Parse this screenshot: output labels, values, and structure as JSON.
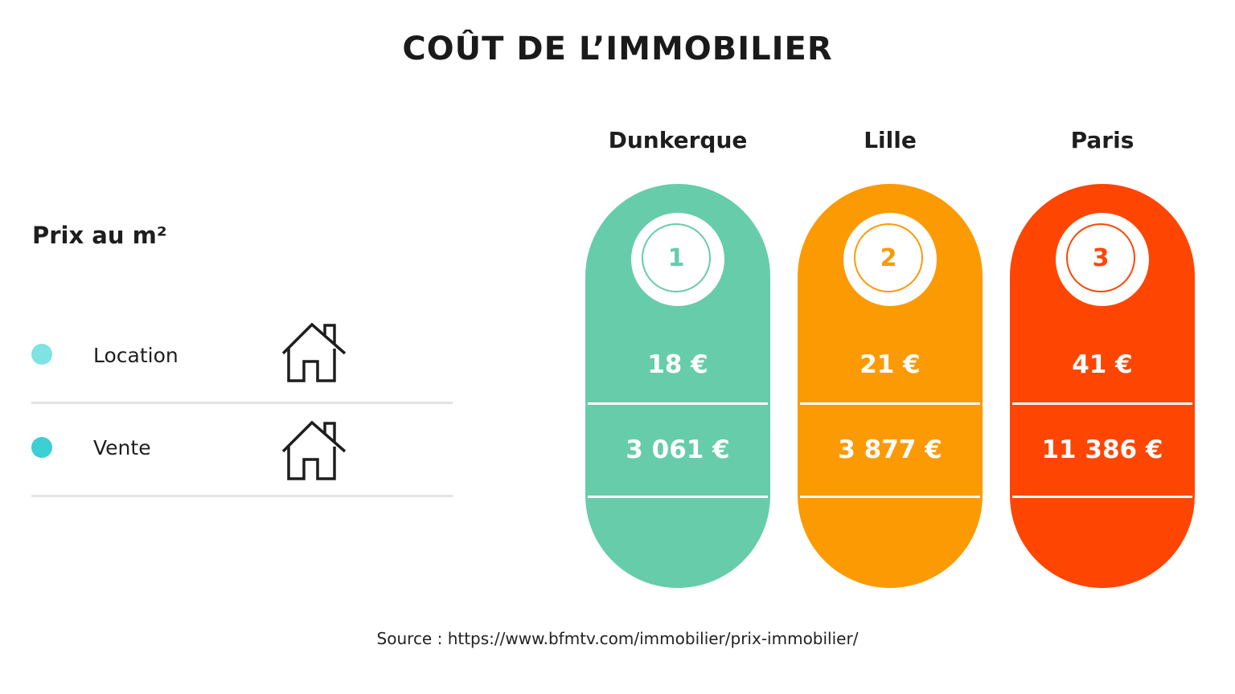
{
  "title": "COÛT DE L’IMMOBILIER",
  "legend": {
    "title": "Prix au m²",
    "items": [
      {
        "label": "Location",
        "color": "#7FE3E3",
        "icon": "house-icon"
      },
      {
        "label": "Vente",
        "color": "#3CCFD3",
        "icon": "house-icon"
      }
    ]
  },
  "chart_data": {
    "type": "table",
    "title": "COÛT DE L’IMMOBILIER",
    "row_labels": [
      "Location",
      "Vente"
    ],
    "columns": [
      {
        "city": "Dunkerque",
        "rank": "1",
        "location": "18 €",
        "vente": "3 061 €",
        "location_value": 18,
        "vente_value": 3061,
        "color": "#67CCAA"
      },
      {
        "city": "Lille",
        "rank": "2",
        "location": "21 €",
        "vente": "3 877 €",
        "location_value": 21,
        "vente_value": 3877,
        "color": "#FC9A04"
      },
      {
        "city": "Paris",
        "rank": "3",
        "location": "41 €",
        "vente": "11 386 €",
        "location_value": 41,
        "vente_value": 11386,
        "color": "#FE4602"
      }
    ]
  },
  "source": "Source : https://www.bfmtv.com/immobilier/prix-immobilier/"
}
